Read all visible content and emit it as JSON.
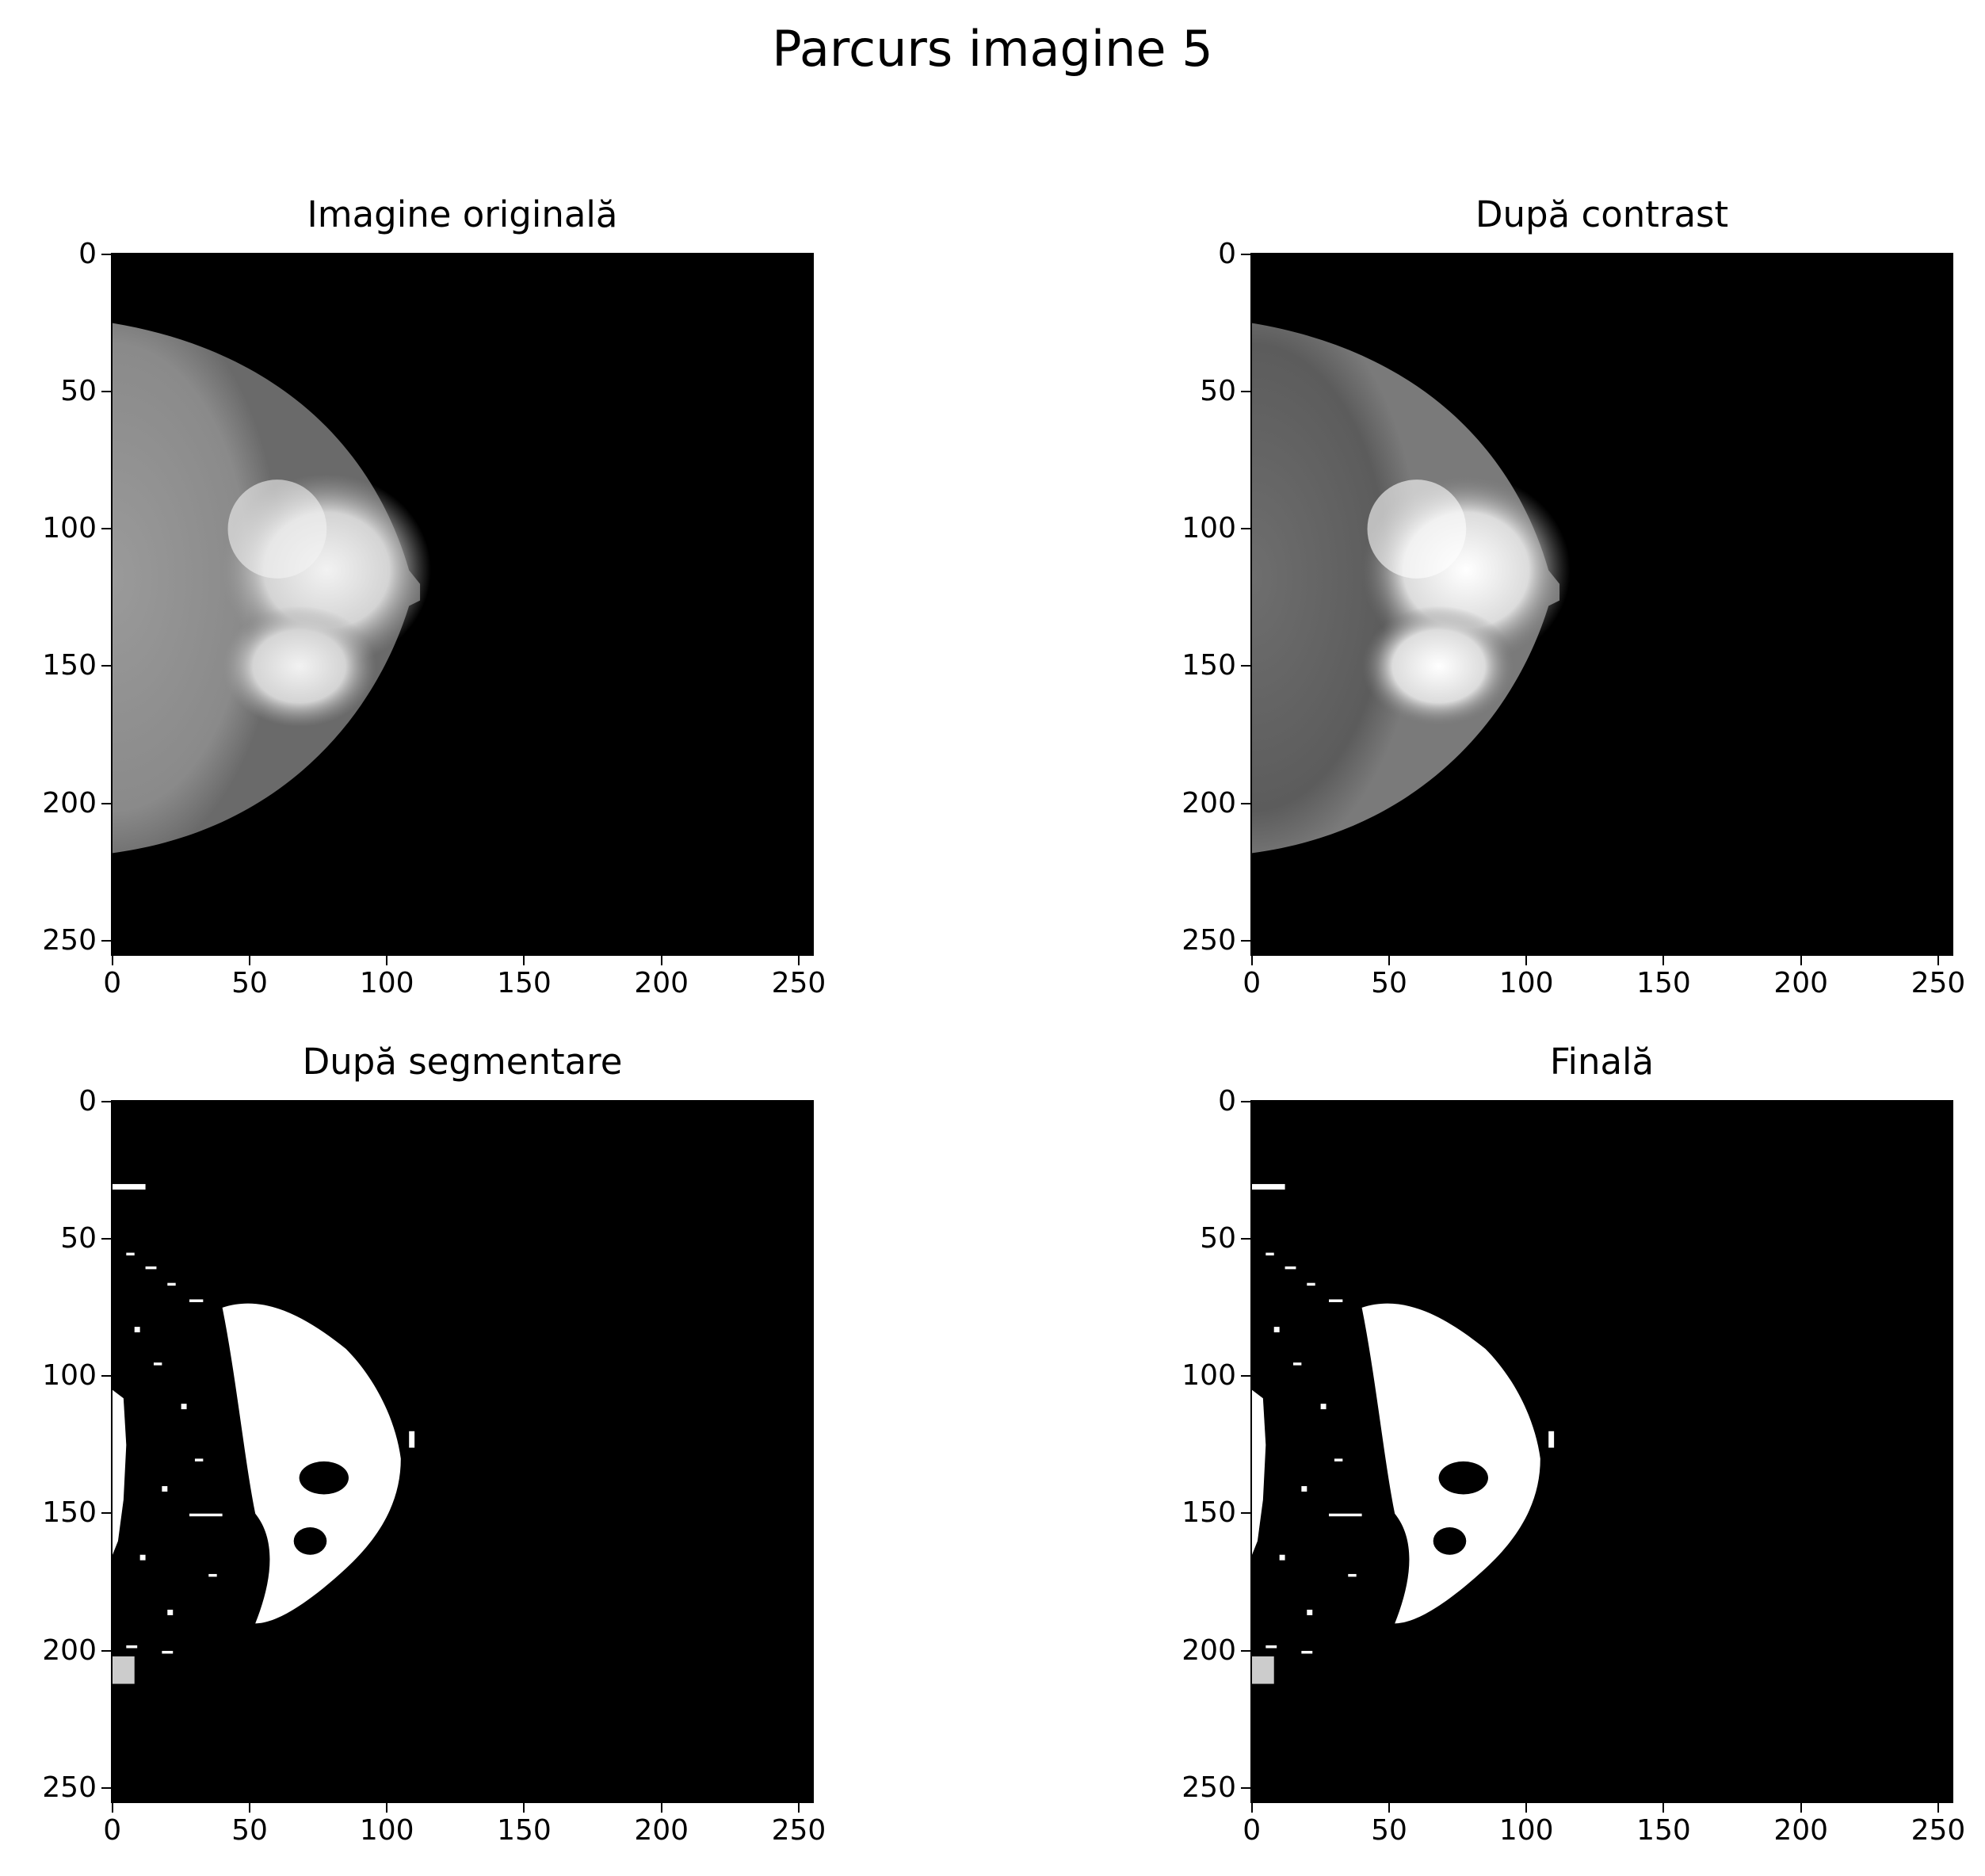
{
  "figure": {
    "title": "Parcurs imagine 5"
  },
  "ticks": [
    "0",
    "50",
    "100",
    "150",
    "200",
    "250"
  ],
  "tick_values": [
    0,
    50,
    100,
    150,
    200,
    250
  ],
  "axis_range": [
    0,
    256
  ],
  "colormap": {
    "background": "#000000",
    "foreground": "#ffffff",
    "tissue_gray": "#8a8a8a",
    "dense_gray": "#e6e6e6"
  },
  "panels": [
    {
      "title": "Imagine originală",
      "content": "grayscale mammogram"
    },
    {
      "title": "După contrast",
      "content": "contrast-enhanced mammogram"
    },
    {
      "title": "După segmentare",
      "content": "binary mask"
    },
    {
      "title": "Finală",
      "content": "binary mask"
    }
  ]
}
